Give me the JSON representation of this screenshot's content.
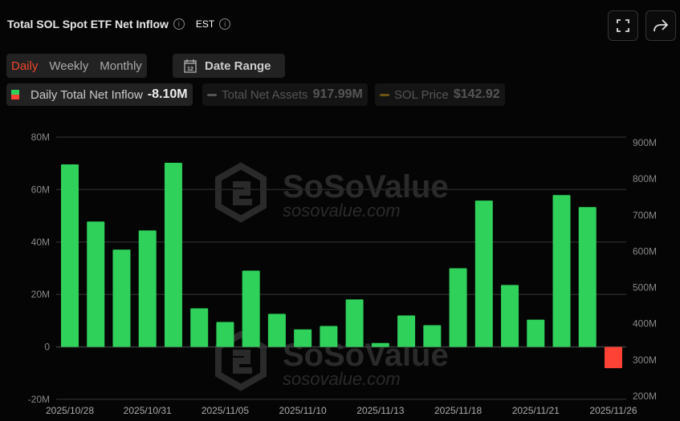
{
  "header": {
    "title": "Total SOL Spot ETF Net Inflow",
    "timezone": "EST",
    "fullscreen_icon": "expand-icon",
    "share_icon": "share-icon"
  },
  "tabs": [
    {
      "label": "Daily",
      "active": true
    },
    {
      "label": "Weekly",
      "active": false
    },
    {
      "label": "Monthly",
      "active": false
    }
  ],
  "date_range": {
    "label": "Date Range",
    "icon": "calendar-icon",
    "icon_text": "12"
  },
  "legend": [
    {
      "label": "Daily Total Net Inflow",
      "value": "-8.10M"
    },
    {
      "label": "Total Net Assets",
      "value": "917.99M"
    },
    {
      "label": "SOL Price",
      "value": "$142.92"
    }
  ],
  "watermark": {
    "brand": "SoSoValue",
    "url": "sosovalue.com"
  },
  "colors": {
    "positive": "#2fd15a",
    "negative": "#ff4136",
    "active_tab": "#f0462b",
    "price_legend": "#6b5412",
    "assets_legend": "#555555"
  },
  "chart_data": {
    "type": "bar",
    "categories": [
      "2025/10/28",
      "2025/10/29",
      "2025/10/30",
      "2025/10/31",
      "2025/11/03",
      "2025/11/04",
      "2025/11/05",
      "2025/11/06",
      "2025/11/07",
      "2025/11/10",
      "2025/11/11",
      "2025/11/12",
      "2025/11/13",
      "2025/11/14",
      "2025/11/17",
      "2025/11/18",
      "2025/11/19",
      "2025/11/20",
      "2025/11/21",
      "2025/11/24",
      "2025/11/25",
      "2025/11/26"
    ],
    "x_tick_labels": [
      "2025/10/28",
      "2025/10/31",
      "2025/11/05",
      "2025/11/10",
      "2025/11/13",
      "2025/11/18",
      "2025/11/21",
      "2025/11/26"
    ],
    "series": [
      {
        "name": "Daily Total Net Inflow",
        "unit": "M",
        "values": [
          69.6,
          47.8,
          37.1,
          44.4,
          70.2,
          14.7,
          9.5,
          29.1,
          12.6,
          6.7,
          8.0,
          18.1,
          1.5,
          12.0,
          8.3,
          30.0,
          55.8,
          23.6,
          10.4,
          57.9,
          53.3,
          -8.1
        ]
      }
    ],
    "ylim": [
      -20,
      80
    ],
    "y_ticks": [
      "-20M",
      "0",
      "20M",
      "40M",
      "60M",
      "80M"
    ],
    "y2lim": [
      200,
      900
    ],
    "y2_ticks": [
      "200M",
      "300M",
      "400M",
      "500M",
      "600M",
      "700M",
      "800M",
      "900M"
    ],
    "grid": true
  }
}
